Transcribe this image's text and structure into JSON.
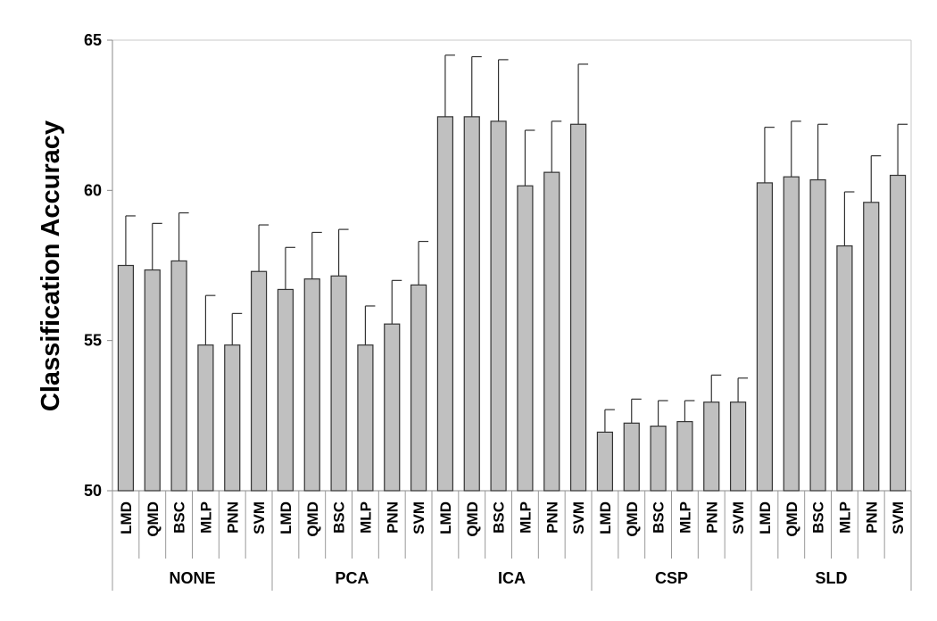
{
  "chart_data": {
    "type": "bar",
    "ylabel": "Classification Accuracy",
    "xlabel": "",
    "ylim": [
      50,
      65
    ],
    "yticks": [
      50,
      55,
      60,
      65
    ],
    "grid": false,
    "bar_color": "#c0c0c0",
    "bar_edge_color": "#333333",
    "error_bar_color": "#333333",
    "groups": [
      {
        "name": "NONE",
        "categories": [
          "LMD",
          "QMD",
          "BSC",
          "MLP",
          "PNN",
          "SVM"
        ],
        "values": [
          57.5,
          57.35,
          57.65,
          54.85,
          54.85,
          57.3
        ],
        "errors": [
          1.65,
          1.55,
          1.6,
          1.65,
          1.05,
          1.55
        ]
      },
      {
        "name": "PCA",
        "categories": [
          "LMD",
          "QMD",
          "BSC",
          "MLP",
          "PNN",
          "SVM"
        ],
        "values": [
          56.7,
          57.05,
          57.15,
          54.85,
          55.55,
          56.85
        ],
        "errors": [
          1.4,
          1.55,
          1.55,
          1.3,
          1.45,
          1.45
        ]
      },
      {
        "name": "ICA",
        "categories": [
          "LMD",
          "QMD",
          "BSC",
          "MLP",
          "PNN",
          "SVM"
        ],
        "values": [
          62.45,
          62.45,
          62.3,
          60.15,
          60.6,
          62.2
        ],
        "errors": [
          2.05,
          2.0,
          2.05,
          1.85,
          1.7,
          2.0
        ]
      },
      {
        "name": "CSP",
        "categories": [
          "LMD",
          "QMD",
          "BSC",
          "MLP",
          "PNN",
          "SVM"
        ],
        "values": [
          51.95,
          52.25,
          52.15,
          52.3,
          52.95,
          52.95
        ],
        "errors": [
          0.75,
          0.8,
          0.85,
          0.7,
          0.9,
          0.8
        ]
      },
      {
        "name": "SLD",
        "categories": [
          "LMD",
          "QMD",
          "BSC",
          "MLP",
          "PNN",
          "SVM"
        ],
        "values": [
          60.25,
          60.45,
          60.35,
          58.15,
          59.6,
          60.5
        ],
        "errors": [
          1.85,
          1.85,
          1.85,
          1.8,
          1.55,
          1.7
        ]
      }
    ]
  }
}
